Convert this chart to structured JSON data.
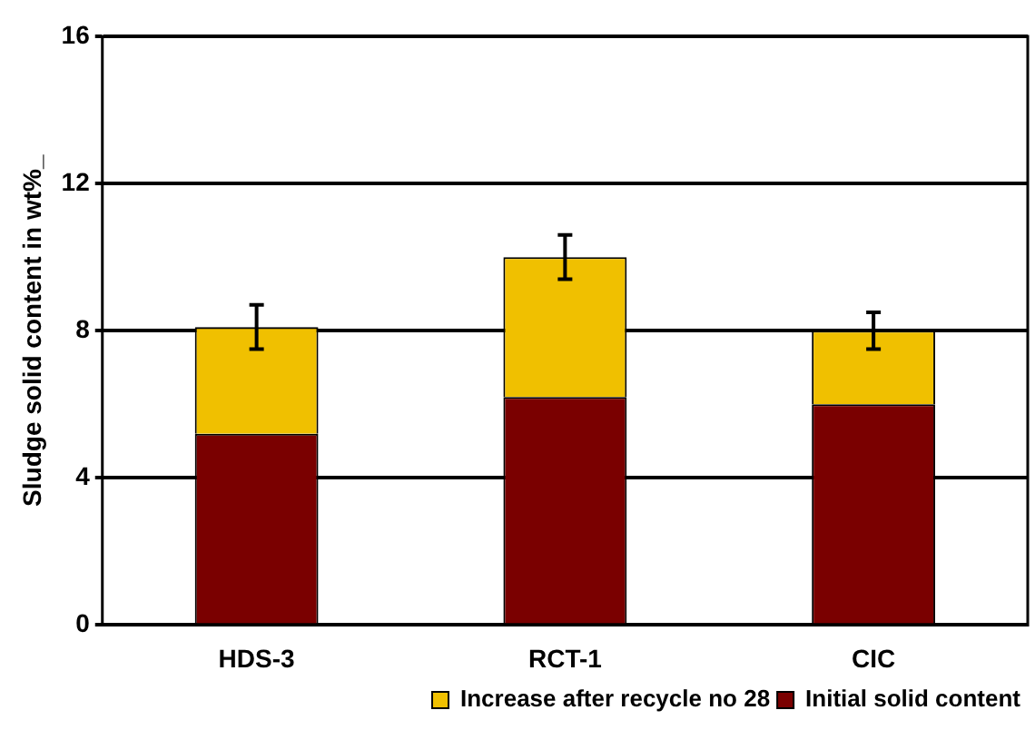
{
  "chart_data": {
    "type": "bar",
    "stacked": true,
    "ylabel": "Sludge solid content in wt%_",
    "categories": [
      "HDS-3",
      "RCT-1",
      "CIC"
    ],
    "series": [
      {
        "name": "Initial solid content",
        "color": "#7a0000",
        "values": [
          5.2,
          6.2,
          6.0
        ]
      },
      {
        "name": "Increase after recycle no 28",
        "color": "#f0c000",
        "values": [
          2.9,
          3.8,
          2.0
        ],
        "errors": [
          0.6,
          0.6,
          0.5
        ]
      }
    ],
    "ylim": [
      0,
      16
    ],
    "yticks": [
      0,
      4,
      8,
      12,
      16
    ],
    "grid": "y",
    "legend": "bottom right"
  }
}
